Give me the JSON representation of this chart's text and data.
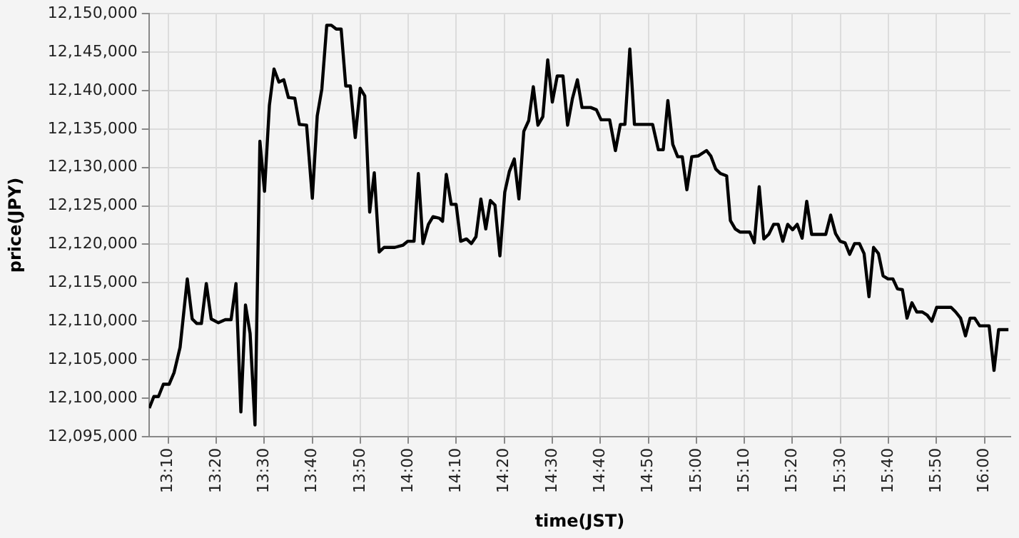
{
  "chart_data": {
    "type": "line",
    "xlabel": "time(JST)",
    "ylabel": "price(JPY)",
    "color": "#000000",
    "grid": true,
    "legend": false,
    "marker": "none",
    "line_style": "solid",
    "xlim": [
      13.1,
      16.09
    ],
    "xticks": [
      {
        "value": 13.1667,
        "label": "13:10"
      },
      {
        "value": 13.3333,
        "label": "13:20"
      },
      {
        "value": 13.5,
        "label": "13:30"
      },
      {
        "value": 13.6667,
        "label": "13:40"
      },
      {
        "value": 13.8333,
        "label": "13:50"
      },
      {
        "value": 14,
        "label": "14:00"
      },
      {
        "value": 14.1667,
        "label": "14:10"
      },
      {
        "value": 14.3333,
        "label": "14:20"
      },
      {
        "value": 14.5,
        "label": "14:30"
      },
      {
        "value": 14.6667,
        "label": "14:40"
      },
      {
        "value": 14.8333,
        "label": "14:50"
      },
      {
        "value": 15,
        "label": "15:00"
      },
      {
        "value": 15.1667,
        "label": "15:10"
      },
      {
        "value": 15.3333,
        "label": "15:20"
      },
      {
        "value": 15.5,
        "label": "15:30"
      },
      {
        "value": 15.6667,
        "label": "15:40"
      },
      {
        "value": 15.8333,
        "label": "15:50"
      },
      {
        "value": 16,
        "label": "16:00"
      }
    ],
    "ylim": [
      12095000,
      12150000
    ],
    "yticks": [
      {
        "value": 12095000,
        "label": "12,095,000"
      },
      {
        "value": 12100000,
        "label": "12,100,000"
      },
      {
        "value": 12105000,
        "label": "12,105,000"
      },
      {
        "value": 12110000,
        "label": "12,110,000"
      },
      {
        "value": 12115000,
        "label": "12,115,000"
      },
      {
        "value": 12120000,
        "label": "12,120,000"
      },
      {
        "value": 12125000,
        "label": "12,125,000"
      },
      {
        "value": 12130000,
        "label": "12,130,000"
      },
      {
        "value": 12135000,
        "label": "12,135,000"
      },
      {
        "value": 12140000,
        "label": "12,140,000"
      },
      {
        "value": 12145000,
        "label": "12,145,000"
      },
      {
        "value": 12150000,
        "label": "12,150,000"
      }
    ],
    "x": [
      13.101,
      13.117,
      13.133,
      13.15,
      13.17,
      13.187,
      13.208,
      13.233,
      13.25,
      13.266,
      13.282,
      13.299,
      13.316,
      13.341,
      13.365,
      13.385,
      13.402,
      13.419,
      13.435,
      13.451,
      13.468,
      13.485,
      13.501,
      13.518,
      13.534,
      13.551,
      13.568,
      13.584,
      13.606,
      13.622,
      13.647,
      13.667,
      13.684,
      13.7,
      13.717,
      13.733,
      13.75,
      13.767,
      13.783,
      13.799,
      13.816,
      13.833,
      13.849,
      13.866,
      13.882,
      13.899,
      13.916,
      13.953,
      13.982,
      13.998,
      14.02,
      14.035,
      14.051,
      14.07,
      14.086,
      14.108,
      14.119,
      14.132,
      14.149,
      14.166,
      14.182,
      14.202,
      14.219,
      14.235,
      14.252,
      14.269,
      14.285,
      14.301,
      14.318,
      14.335,
      14.351,
      14.368,
      14.384,
      14.401,
      14.418,
      14.434,
      14.45,
      14.467,
      14.484,
      14.5,
      14.517,
      14.537,
      14.553,
      14.57,
      14.587,
      14.603,
      14.633,
      14.653,
      14.669,
      14.699,
      14.719,
      14.736,
      14.752,
      14.769,
      14.785,
      14.848,
      14.868,
      14.885,
      14.901,
      14.918,
      14.935,
      14.951,
      14.967,
      14.984,
      15.006,
      15.035,
      15.05,
      15.067,
      15.084,
      15.105,
      15.118,
      15.135,
      15.151,
      15.185,
      15.201,
      15.218,
      15.234,
      15.251,
      15.268,
      15.284,
      15.3,
      15.317,
      15.334,
      15.35,
      15.367,
      15.383,
      15.4,
      15.449,
      15.466,
      15.483,
      15.499,
      15.516,
      15.532,
      15.549,
      15.566,
      15.582,
      15.599,
      15.615,
      15.632,
      15.648,
      15.665,
      15.682,
      15.698,
      15.715,
      15.731,
      15.748,
      15.765,
      15.784,
      15.801,
      15.817,
      15.834,
      15.884,
      15.9,
      15.917,
      15.934,
      15.95,
      15.966,
      15.983,
      16.016,
      16.033,
      16.049,
      16.083
    ],
    "values": [
      12098700,
      12100200,
      12100200,
      12101800,
      12101800,
      12103300,
      12106600,
      12115500,
      12110300,
      12109700,
      12109700,
      12114900,
      12110300,
      12109800,
      12110200,
      12110200,
      12114900,
      12098200,
      12112100,
      12108400,
      12096500,
      12133400,
      12126900,
      12138100,
      12142800,
      12141100,
      12141400,
      12139100,
      12139000,
      12135600,
      12135500,
      12126000,
      12136700,
      12140200,
      12148500,
      12148500,
      12148000,
      12148000,
      12140600,
      12140600,
      12133900,
      12140300,
      12139300,
      12124200,
      12129300,
      12119000,
      12119600,
      12119600,
      12119900,
      12120400,
      12120400,
      12129200,
      12120100,
      12122600,
      12123600,
      12123400,
      12123000,
      12129100,
      12125200,
      12125200,
      12120400,
      12120700,
      12120100,
      12121000,
      12125900,
      12122000,
      12125700,
      12125100,
      12118500,
      12126800,
      12129500,
      12131100,
      12125900,
      12134700,
      12136100,
      12140500,
      12135500,
      12136600,
      12144000,
      12138500,
      12141900,
      12141900,
      12135500,
      12139000,
      12141400,
      12137800,
      12137800,
      12137500,
      12136200,
      12136200,
      12132200,
      12135600,
      12135600,
      12145400,
      12135600,
      12135600,
      12132300,
      12132300,
      12138700,
      12133000,
      12131400,
      12131400,
      12127100,
      12131400,
      12131500,
      12132200,
      12131500,
      12129800,
      12129200,
      12128900,
      12123100,
      12122000,
      12121600,
      12121600,
      12120200,
      12127500,
      12120700,
      12121300,
      12122600,
      12122600,
      12120400,
      12122600,
      12121900,
      12122600,
      12120800,
      12125600,
      12121300,
      12121300,
      12123800,
      12121400,
      12120400,
      12120200,
      12118700,
      12120100,
      12120100,
      12118800,
      12113200,
      12119600,
      12118800,
      12115900,
      12115500,
      12115500,
      12114200,
      12114100,
      12110400,
      12112400,
      12111200,
      12111200,
      12110800,
      12110000,
      12111800,
      12111800,
      12111200,
      12110400,
      12108100,
      12110400,
      12110400,
      12109400,
      12109400,
      12103600,
      12108900,
      12108900
    ]
  }
}
